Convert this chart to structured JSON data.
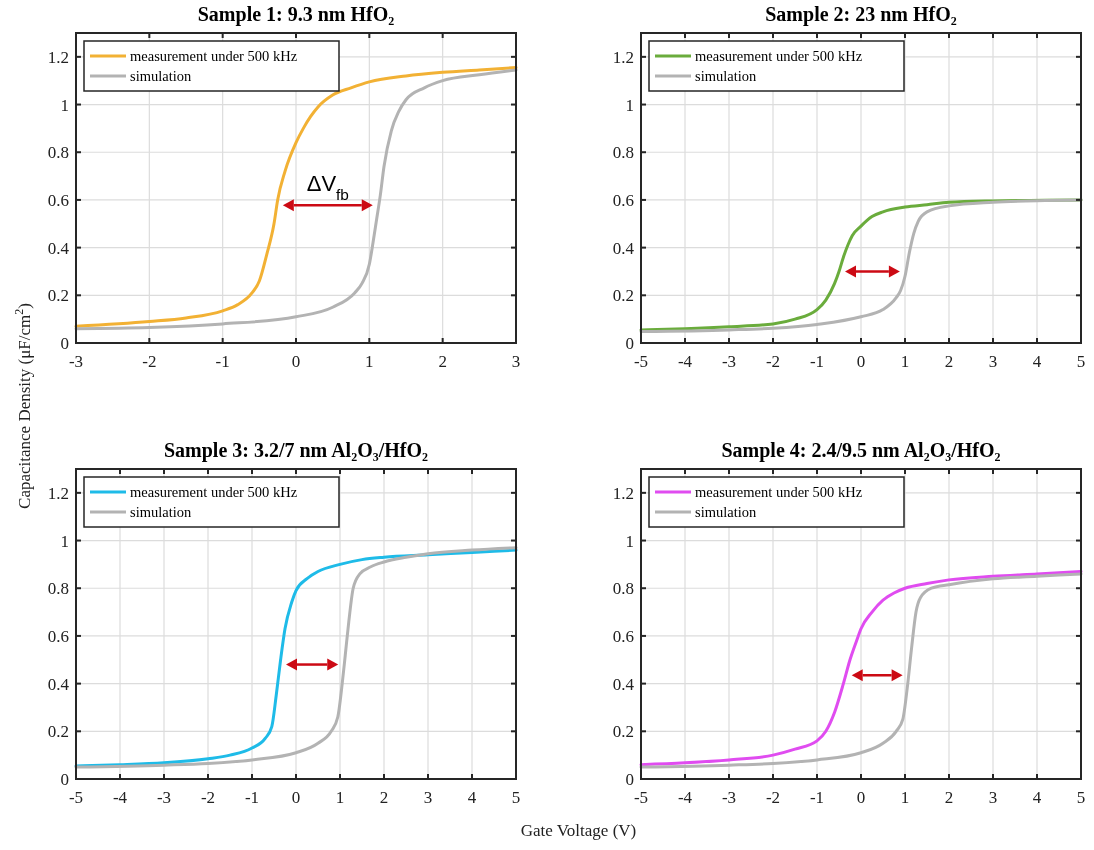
{
  "chart_data": [
    {
      "type": "line",
      "title": "Sample 1: 9.3 nm HfO₂",
      "ylabel": "Capacitance Density (μF/cm$^{2}$)",
      "xlim": [
        -3,
        3
      ],
      "xticks": [
        -3,
        -2,
        -1,
        0,
        1,
        2,
        3
      ],
      "ylim": [
        0,
        1.3
      ],
      "yticks": [
        0,
        0.2,
        0.4,
        0.6,
        0.8,
        1,
        1.2
      ],
      "grid": true,
      "legend": "top left",
      "annotations": [
        "ΔV$_{fb}$"
      ],
      "series": [
        {
          "name": "measurement under 500 kHz",
          "color": "#f2b134",
          "x": [
            -3,
            -2,
            -1.5,
            -1,
            -0.8,
            -0.6,
            -0.5,
            -0.4,
            -0.3,
            -0.25,
            -0.15,
            0,
            0.1,
            0.2,
            0.3,
            0.5,
            0.75,
            1,
            1.5,
            2,
            2.5,
            3
          ],
          "values": [
            0.07,
            0.09,
            0.105,
            0.135,
            0.16,
            0.21,
            0.26,
            0.37,
            0.5,
            0.6,
            0.72,
            0.84,
            0.9,
            0.95,
            0.99,
            1.04,
            1.07,
            1.095,
            1.12,
            1.135,
            1.145,
            1.155
          ]
        },
        {
          "name": "simulation",
          "color": "#b3b3b3",
          "x": [
            -3,
            -2,
            -1,
            0,
            0.5,
            0.8,
            0.9,
            1,
            1.05,
            1.1,
            1.15,
            1.2,
            1.3,
            1.4,
            1.5,
            1.75,
            2,
            2.5,
            3
          ],
          "values": [
            0.06,
            0.065,
            0.08,
            0.11,
            0.15,
            0.21,
            0.25,
            0.33,
            0.42,
            0.52,
            0.62,
            0.74,
            0.89,
            0.97,
            1.02,
            1.07,
            1.1,
            1.125,
            1.145
          ]
        }
      ]
    },
    {
      "type": "line",
      "title": "Sample 2: 23 nm HfO₂",
      "xlim": [
        -5,
        5
      ],
      "xticks": [
        -5,
        -4,
        -3,
        -2,
        -1,
        0,
        1,
        2,
        3,
        4,
        5
      ],
      "ylim": [
        0,
        1.3
      ],
      "yticks": [
        0,
        0.2,
        0.4,
        0.6,
        0.8,
        1,
        1.2
      ],
      "grid": true,
      "legend": "top left",
      "series": [
        {
          "name": "measurement under 500 kHz",
          "color": "#6aac3c",
          "x": [
            -5,
            -4,
            -3,
            -2,
            -1.5,
            -1,
            -0.8,
            -0.6,
            -0.5,
            -0.4,
            -0.3,
            -0.2,
            0,
            0.25,
            0.5,
            1,
            1.5,
            2,
            3,
            5
          ],
          "values": [
            0.055,
            0.06,
            0.068,
            0.08,
            0.1,
            0.14,
            0.18,
            0.25,
            0.3,
            0.36,
            0.41,
            0.45,
            0.49,
            0.53,
            0.55,
            0.57,
            0.58,
            0.59,
            0.596,
            0.6
          ]
        },
        {
          "name": "simulation",
          "color": "#b3b3b3",
          "x": [
            -5,
            -3,
            -2,
            -1,
            0,
            0.5,
            0.8,
            0.9,
            1,
            1.1,
            1.2,
            1.3,
            1.5,
            2,
            3,
            4,
            5
          ],
          "values": [
            0.048,
            0.055,
            0.062,
            0.078,
            0.11,
            0.14,
            0.19,
            0.22,
            0.28,
            0.38,
            0.46,
            0.51,
            0.55,
            0.575,
            0.59,
            0.597,
            0.6
          ]
        }
      ]
    },
    {
      "type": "line",
      "title": "Sample 3: 3.2/7 nm Al₂O₃/HfO₂",
      "xlabel": "Gate Voltage (V)",
      "xlim": [
        -5,
        5
      ],
      "xticks": [
        -5,
        -4,
        -3,
        -2,
        -1,
        0,
        1,
        2,
        3,
        4,
        5
      ],
      "ylim": [
        0,
        1.3
      ],
      "yticks": [
        0,
        0.2,
        0.4,
        0.6,
        0.8,
        1,
        1.2
      ],
      "grid": true,
      "legend": "top left",
      "series": [
        {
          "name": "measurement under 500 kHz",
          "color": "#1ebbe8",
          "x": [
            -5,
            -4,
            -3,
            -2,
            -1.5,
            -1,
            -0.7,
            -0.55,
            -0.45,
            -0.35,
            -0.25,
            -0.1,
            0,
            0.25,
            0.5,
            1,
            1.5,
            2,
            3,
            4,
            5
          ],
          "values": [
            0.055,
            0.06,
            0.068,
            0.085,
            0.1,
            0.13,
            0.17,
            0.22,
            0.35,
            0.5,
            0.63,
            0.74,
            0.79,
            0.84,
            0.87,
            0.9,
            0.92,
            0.93,
            0.94,
            0.95,
            0.96
          ]
        },
        {
          "name": "simulation",
          "color": "#b3b3b3",
          "x": [
            -5,
            -3,
            -2,
            -1,
            0,
            0.5,
            0.8,
            0.95,
            1.05,
            1.12,
            1.2,
            1.3,
            1.45,
            1.7,
            2,
            2.5,
            3,
            4,
            5
          ],
          "values": [
            0.05,
            0.058,
            0.065,
            0.08,
            0.11,
            0.15,
            0.2,
            0.26,
            0.4,
            0.52,
            0.66,
            0.8,
            0.86,
            0.89,
            0.91,
            0.93,
            0.945,
            0.96,
            0.97
          ]
        }
      ]
    },
    {
      "type": "line",
      "title": "Sample 4: 2.4/9.5 nm Al₂O₃/HfO₂",
      "xlim": [
        -5,
        5
      ],
      "xticks": [
        -5,
        -4,
        -3,
        -2,
        -1,
        0,
        1,
        2,
        3,
        4,
        5
      ],
      "ylim": [
        0,
        1.3
      ],
      "yticks": [
        0,
        0.2,
        0.4,
        0.6,
        0.8,
        1,
        1.2
      ],
      "grid": true,
      "legend": "top left",
      "series": [
        {
          "name": "measurement under 500 kHz",
          "color": "#e04cf0",
          "x": [
            -5,
            -4,
            -3,
            -2,
            -1.5,
            -1,
            -0.8,
            -0.6,
            -0.4,
            -0.25,
            -0.1,
            0,
            0.25,
            0.5,
            0.75,
            1,
            1.5,
            2,
            3,
            4,
            5
          ],
          "values": [
            0.06,
            0.068,
            0.08,
            0.1,
            0.125,
            0.16,
            0.2,
            0.28,
            0.4,
            0.5,
            0.58,
            0.63,
            0.7,
            0.75,
            0.78,
            0.8,
            0.82,
            0.835,
            0.85,
            0.86,
            0.87
          ]
        },
        {
          "name": "simulation",
          "color": "#b3b3b3",
          "x": [
            -5,
            -3,
            -2,
            -1,
            0,
            0.5,
            0.8,
            0.95,
            1.05,
            1.15,
            1.25,
            1.35,
            1.6,
            2,
            3,
            4,
            5
          ],
          "values": [
            0.05,
            0.058,
            0.065,
            0.08,
            0.11,
            0.15,
            0.2,
            0.25,
            0.38,
            0.55,
            0.7,
            0.76,
            0.8,
            0.815,
            0.84,
            0.85,
            0.86
          ]
        }
      ]
    }
  ]
}
